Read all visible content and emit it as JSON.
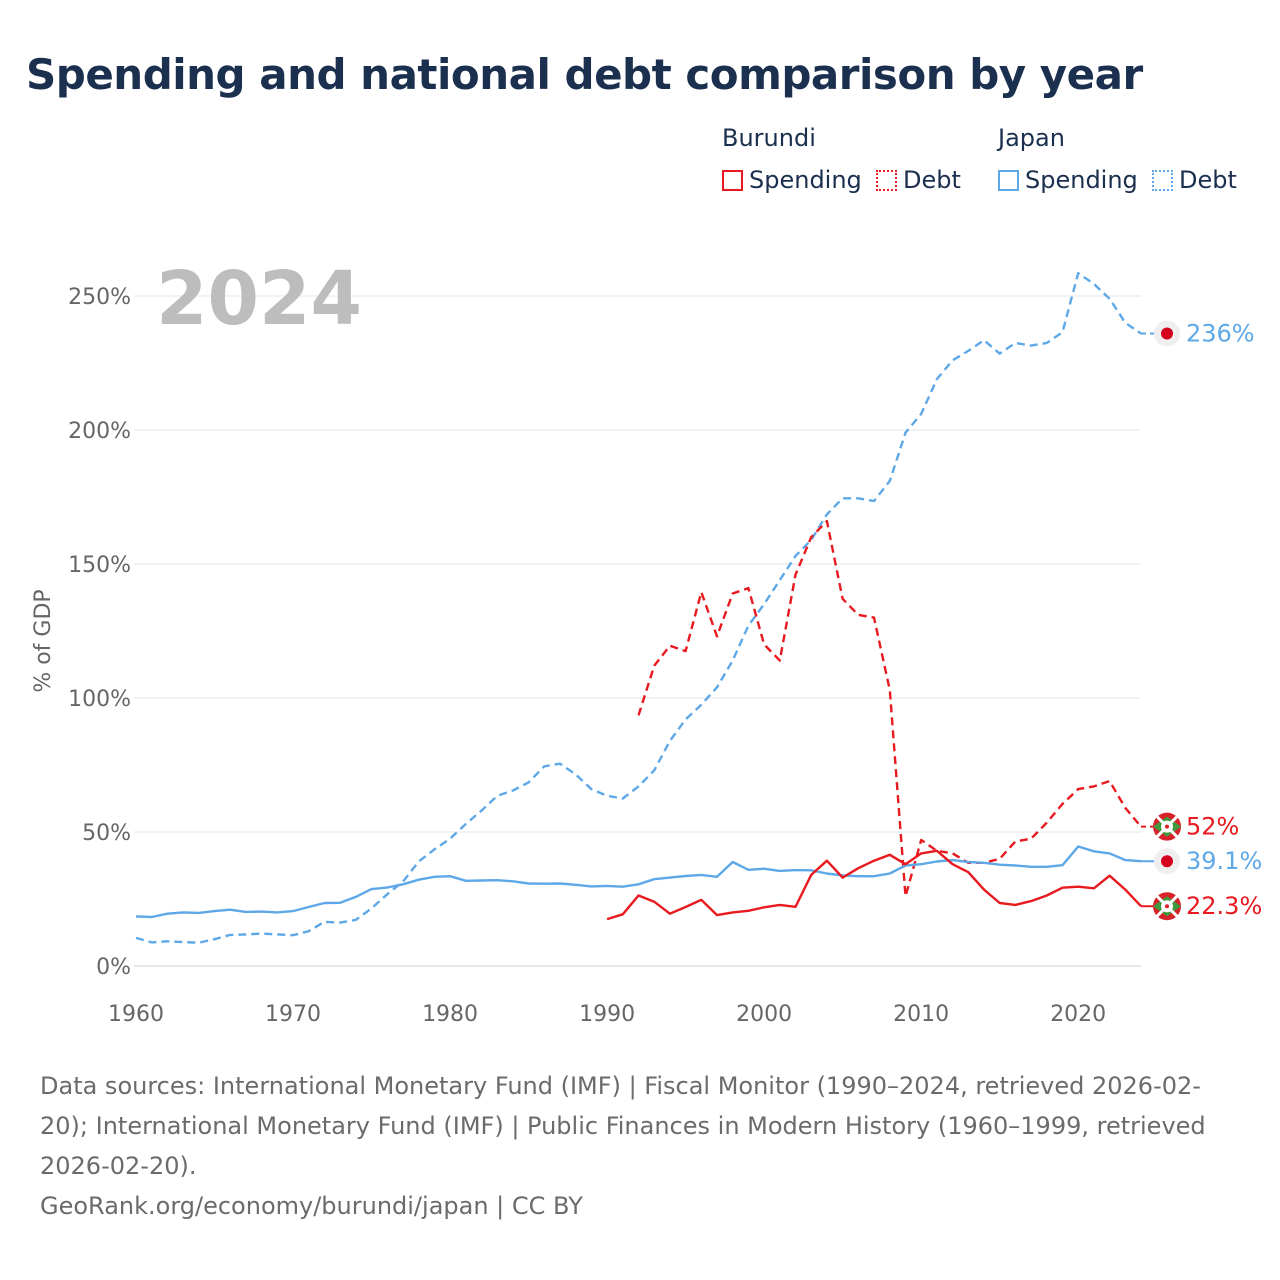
{
  "title": "Spending and national debt comparison by year",
  "year_label": "2024",
  "legend": {
    "groups": [
      {
        "name": "Burundi",
        "items": [
          {
            "label": "Spending",
            "style": "solid",
            "color": "#e8191f"
          },
          {
            "label": "Debt",
            "style": "dotted",
            "color": "#e8191f"
          }
        ]
      },
      {
        "name": "Japan",
        "items": [
          {
            "label": "Spending",
            "style": "solid",
            "color": "#5ea8e8"
          },
          {
            "label": "Debt",
            "style": "dotted",
            "color": "#5ea8e8"
          }
        ]
      }
    ]
  },
  "colors": {
    "burundi": "#e8191f",
    "japan": "#5ea8e8",
    "title": "#1b2f4e"
  },
  "footer": {
    "sources": "Data sources: International Monetary Fund (IMF) | Fiscal Monitor (1990–2024, retrieved 2026-02-20); International Monetary Fund (IMF) | Public Finances in Modern History (1960–1999, retrieved 2026-02-20).",
    "credit": "GeoRank.org/economy/burundi/japan | CC BY"
  },
  "chart_data": {
    "type": "line",
    "title": "Spending and national debt comparison by year",
    "xlabel": "",
    "ylabel": "% of GDP",
    "xlim": [
      1960,
      2024
    ],
    "ylim": [
      0,
      260
    ],
    "x_ticks": [
      1960,
      1970,
      1980,
      1990,
      2000,
      2010,
      2020
    ],
    "y_ticks": [
      0,
      50,
      100,
      150,
      200,
      250
    ],
    "y_tick_labels": [
      "0%",
      "50%",
      "100%",
      "150%",
      "200%",
      "250%"
    ],
    "grid": true,
    "series": [
      {
        "name": "Japan Debt",
        "country": "Japan",
        "measure": "Debt",
        "color": "#5ea8e8",
        "dashed": true,
        "end_label": "236%",
        "x": [
          1960,
          1961,
          1962,
          1963,
          1964,
          1965,
          1966,
          1967,
          1968,
          1969,
          1970,
          1971,
          1972,
          1973,
          1974,
          1975,
          1976,
          1977,
          1978,
          1979,
          1980,
          1981,
          1982,
          1983,
          1984,
          1985,
          1986,
          1987,
          1988,
          1989,
          1990,
          1991,
          1992,
          1993,
          1994,
          1995,
          1996,
          1997,
          1998,
          1999,
          2000,
          2001,
          2002,
          2003,
          2004,
          2005,
          2006,
          2007,
          2008,
          2009,
          2010,
          2011,
          2012,
          2013,
          2014,
          2015,
          2016,
          2017,
          2018,
          2019,
          2020,
          2021,
          2022,
          2023,
          2024
        ],
        "values": [
          10.5,
          8.8,
          9.2,
          8.9,
          8.7,
          10,
          11.6,
          11.8,
          12.1,
          11.8,
          11.5,
          13,
          16.5,
          16.2,
          17.2,
          21.5,
          26.8,
          31.5,
          39,
          43.5,
          47.5,
          53,
          58,
          63.5,
          65.5,
          68.5,
          74.5,
          75.5,
          71.5,
          66,
          63.5,
          62.5,
          67,
          73,
          84,
          92,
          97.5,
          104,
          114,
          127,
          135,
          144,
          153,
          159,
          168.5,
          174.5,
          174.5,
          173.5,
          181,
          199,
          206,
          219,
          226,
          229.5,
          233.5,
          228.5,
          232.5,
          231.5,
          232.5,
          236.5,
          258.5,
          254.5,
          249,
          240,
          236
        ]
      },
      {
        "name": "Burundi Debt",
        "country": "Burundi",
        "measure": "Debt",
        "color": "#e8191f",
        "dashed": true,
        "end_label": "52%",
        "x": [
          1992,
          1993,
          1994,
          1995,
          1996,
          1997,
          1998,
          1999,
          2000,
          2001,
          2002,
          2003,
          2004,
          2005,
          2006,
          2007,
          2008,
          2009,
          2010,
          2011,
          2012,
          2013,
          2014,
          2015,
          2016,
          2017,
          2018,
          2019,
          2020,
          2021,
          2022,
          2023,
          2024
        ],
        "values": [
          93.5,
          112,
          119.5,
          117.5,
          139.5,
          123,
          139,
          141,
          120,
          114,
          146,
          160,
          166,
          137,
          131,
          130,
          103,
          26,
          47,
          43,
          42,
          38.5,
          38.5,
          40,
          46.5,
          47.5,
          53.5,
          60.5,
          66,
          67,
          69,
          59,
          52
        ]
      },
      {
        "name": "Japan Spending",
        "country": "Japan",
        "measure": "Spending",
        "color": "#5ea8e8",
        "dashed": false,
        "end_label": "39.1%",
        "x": [
          1960,
          1961,
          1962,
          1963,
          1964,
          1965,
          1966,
          1967,
          1968,
          1969,
          1970,
          1971,
          1972,
          1973,
          1974,
          1975,
          1976,
          1977,
          1978,
          1979,
          1980,
          1981,
          1982,
          1983,
          1984,
          1985,
          1986,
          1987,
          1988,
          1989,
          1990,
          1991,
          1992,
          1993,
          1994,
          1995,
          1996,
          1997,
          1998,
          1999,
          2000,
          2001,
          2002,
          2003,
          2004,
          2005,
          2006,
          2007,
          2008,
          2009,
          2010,
          2011,
          2012,
          2013,
          2014,
          2015,
          2016,
          2017,
          2018,
          2019,
          2020,
          2021,
          2022,
          2023,
          2024
        ],
        "values": [
          18.5,
          18.3,
          19.5,
          20,
          19.8,
          20.5,
          21,
          20.2,
          20.3,
          20,
          20.5,
          22,
          23.5,
          23.6,
          25.8,
          28.7,
          29.3,
          30.5,
          32.2,
          33.3,
          33.5,
          31.8,
          31.9,
          32,
          31.6,
          30.8,
          30.7,
          30.8,
          30.3,
          29.7,
          29.9,
          29.6,
          30.5,
          32.4,
          33,
          33.6,
          34,
          33.3,
          38.8,
          35.9,
          36.3,
          35.5,
          35.8,
          35.7,
          34.5,
          33.8,
          33.5,
          33.5,
          34.5,
          37.5,
          38,
          39,
          39.5,
          38.8,
          38.5,
          37.8,
          37.5,
          37,
          37,
          37.6,
          44.6,
          42.8,
          42,
          39.5,
          39.1
        ]
      },
      {
        "name": "Burundi Spending",
        "country": "Burundi",
        "measure": "Spending",
        "color": "#e8191f",
        "dashed": false,
        "end_label": "22.3%",
        "x": [
          1990,
          1991,
          1992,
          1993,
          1994,
          1995,
          1996,
          1997,
          1998,
          1999,
          2000,
          2001,
          2002,
          2003,
          2004,
          2005,
          2006,
          2007,
          2008,
          2009,
          2010,
          2011,
          2012,
          2013,
          2014,
          2015,
          2016,
          2017,
          2018,
          2019,
          2020,
          2021,
          2022,
          2023,
          2024
        ],
        "values": [
          17.5,
          19.3,
          26.3,
          24,
          19.5,
          22,
          24.7,
          19,
          20,
          20.6,
          21.9,
          22.8,
          22.1,
          34,
          39.3,
          33,
          36.5,
          39.3,
          41.5,
          38,
          42,
          43,
          38,
          35,
          28.5,
          23.5,
          22.8,
          24.2,
          26.3,
          29.2,
          29.6,
          29,
          33.7,
          28.5,
          22.3
        ]
      }
    ]
  }
}
